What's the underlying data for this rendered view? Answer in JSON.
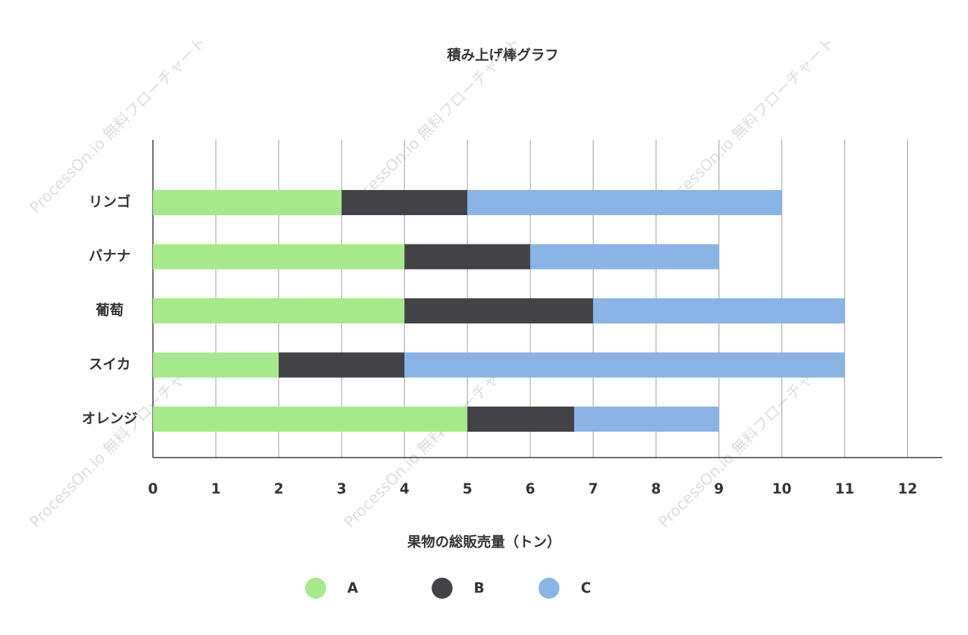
{
  "chart_data": {
    "type": "stacked-barh",
    "title": "積み上げ棒グラフ",
    "x_label": "果物の総販売量（トン）",
    "watermark": "ProcessOn.io 無料フローチャート",
    "categories": [
      "リンゴ",
      "バナナ",
      "葡萄",
      "スイカ",
      "オレンジ"
    ],
    "series": [
      {
        "name": "A",
        "color": "#a6e98a",
        "values": [
          3,
          4,
          4,
          2,
          5
        ]
      },
      {
        "name": "B",
        "color": "#434247",
        "values": [
          2,
          2,
          3,
          2,
          1.7
        ]
      },
      {
        "name": "C",
        "color": "#8ab4e6",
        "values": [
          5,
          3,
          4,
          7,
          2.3
        ]
      }
    ],
    "xlim": [
      0,
      12.55
    ],
    "xticks": [
      0,
      1,
      2,
      3,
      4,
      5,
      6,
      7,
      8,
      9,
      10,
      11,
      12
    ],
    "grid": true
  }
}
